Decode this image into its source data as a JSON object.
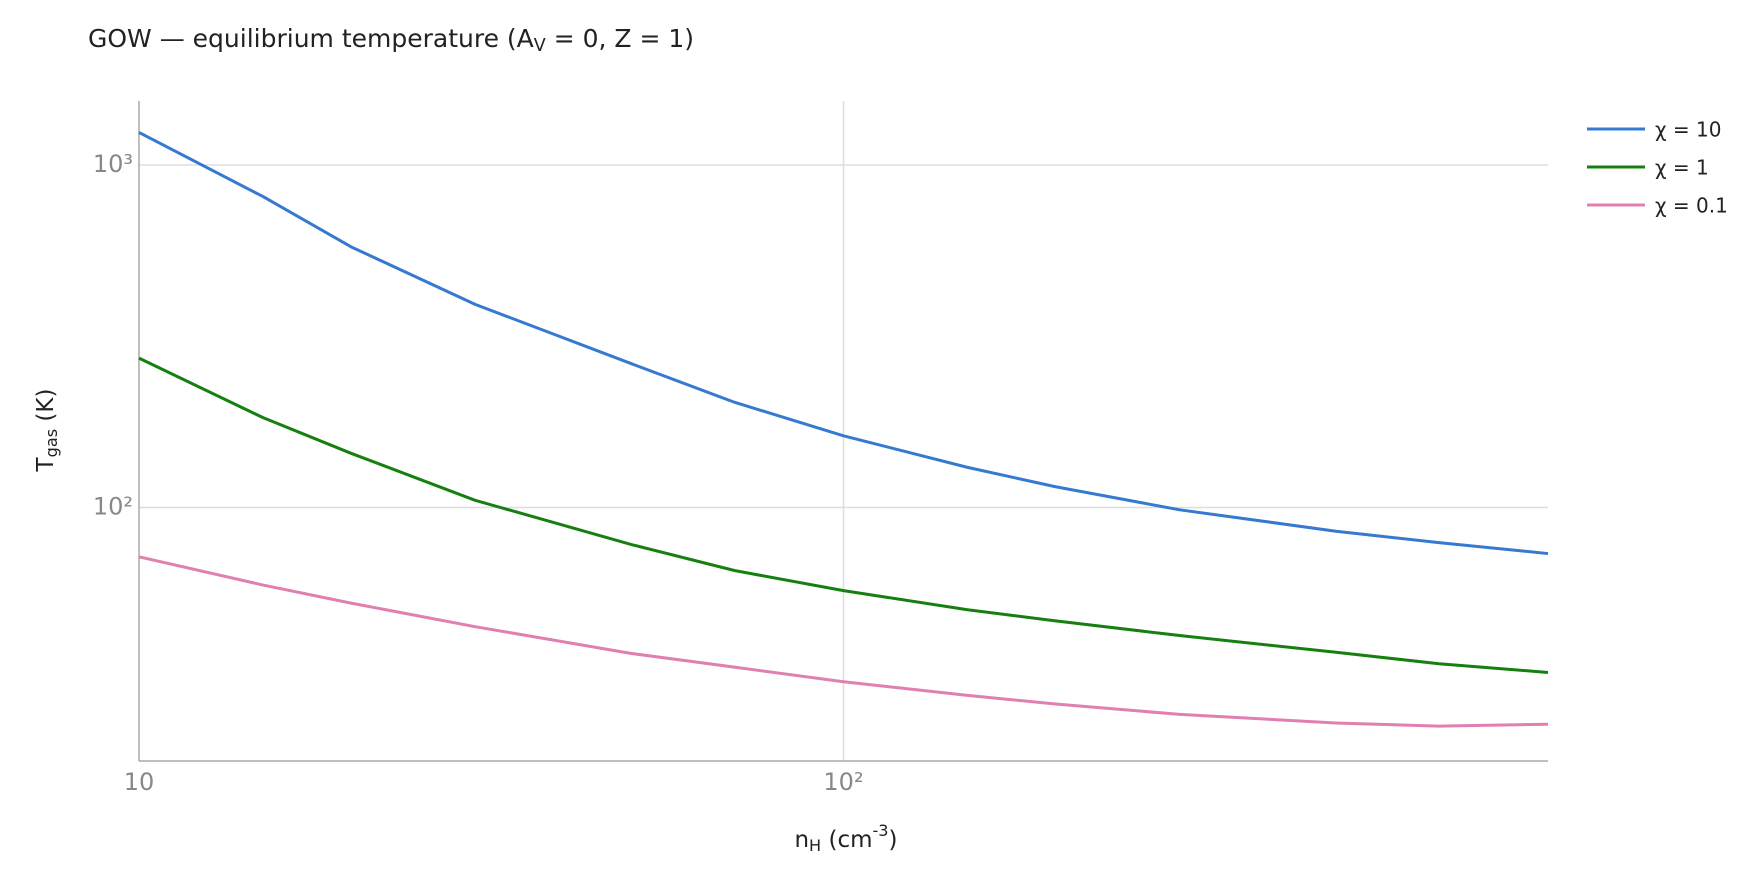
{
  "chart_data": {
    "type": "line",
    "title": "GOW — equilibrium temperature (A_{V} = 0, Z = 1)",
    "x_label": "n_{H}  (cm^{-3})",
    "y_label": "T_{gas}  (K)",
    "x": [
      10,
      15,
      20,
      30,
      50,
      70,
      100,
      150,
      200,
      300,
      500,
      700,
      1000
    ],
    "series": [
      {
        "name": "χ = 10",
        "color": "#3579d0",
        "values": [
          1245,
          809,
          577,
          392,
          263,
          203,
          162,
          131,
          115,
          98.5,
          85.3,
          79,
          73.4
        ]
      },
      {
        "name": "χ = 1",
        "color": "#15800f",
        "values": [
          273,
          183,
          144,
          105,
          78,
          65.5,
          57.2,
          50.3,
          46.7,
          42.3,
          37.8,
          35,
          33
        ]
      },
      {
        "name": "χ = 0.1",
        "color": "#e07fb0",
        "values": [
          71.8,
          59.4,
          52.6,
          44.9,
          37.5,
          34.2,
          31,
          28.3,
          26.7,
          24.9,
          23.5,
          23,
          23.3
        ]
      }
    ],
    "x_scale": "log",
    "y_scale": "log",
    "xlim": [
      10,
      1000
    ],
    "ylim": [
      18.2,
      1538
    ],
    "xticks": [
      10,
      {
        "value": 100,
        "label": "10²"
      }
    ],
    "yticks": [
      {
        "value": 100,
        "label": "10²"
      },
      {
        "value": 1000,
        "label": "10³"
      }
    ],
    "grid": true,
    "legend": "outside-right"
  }
}
